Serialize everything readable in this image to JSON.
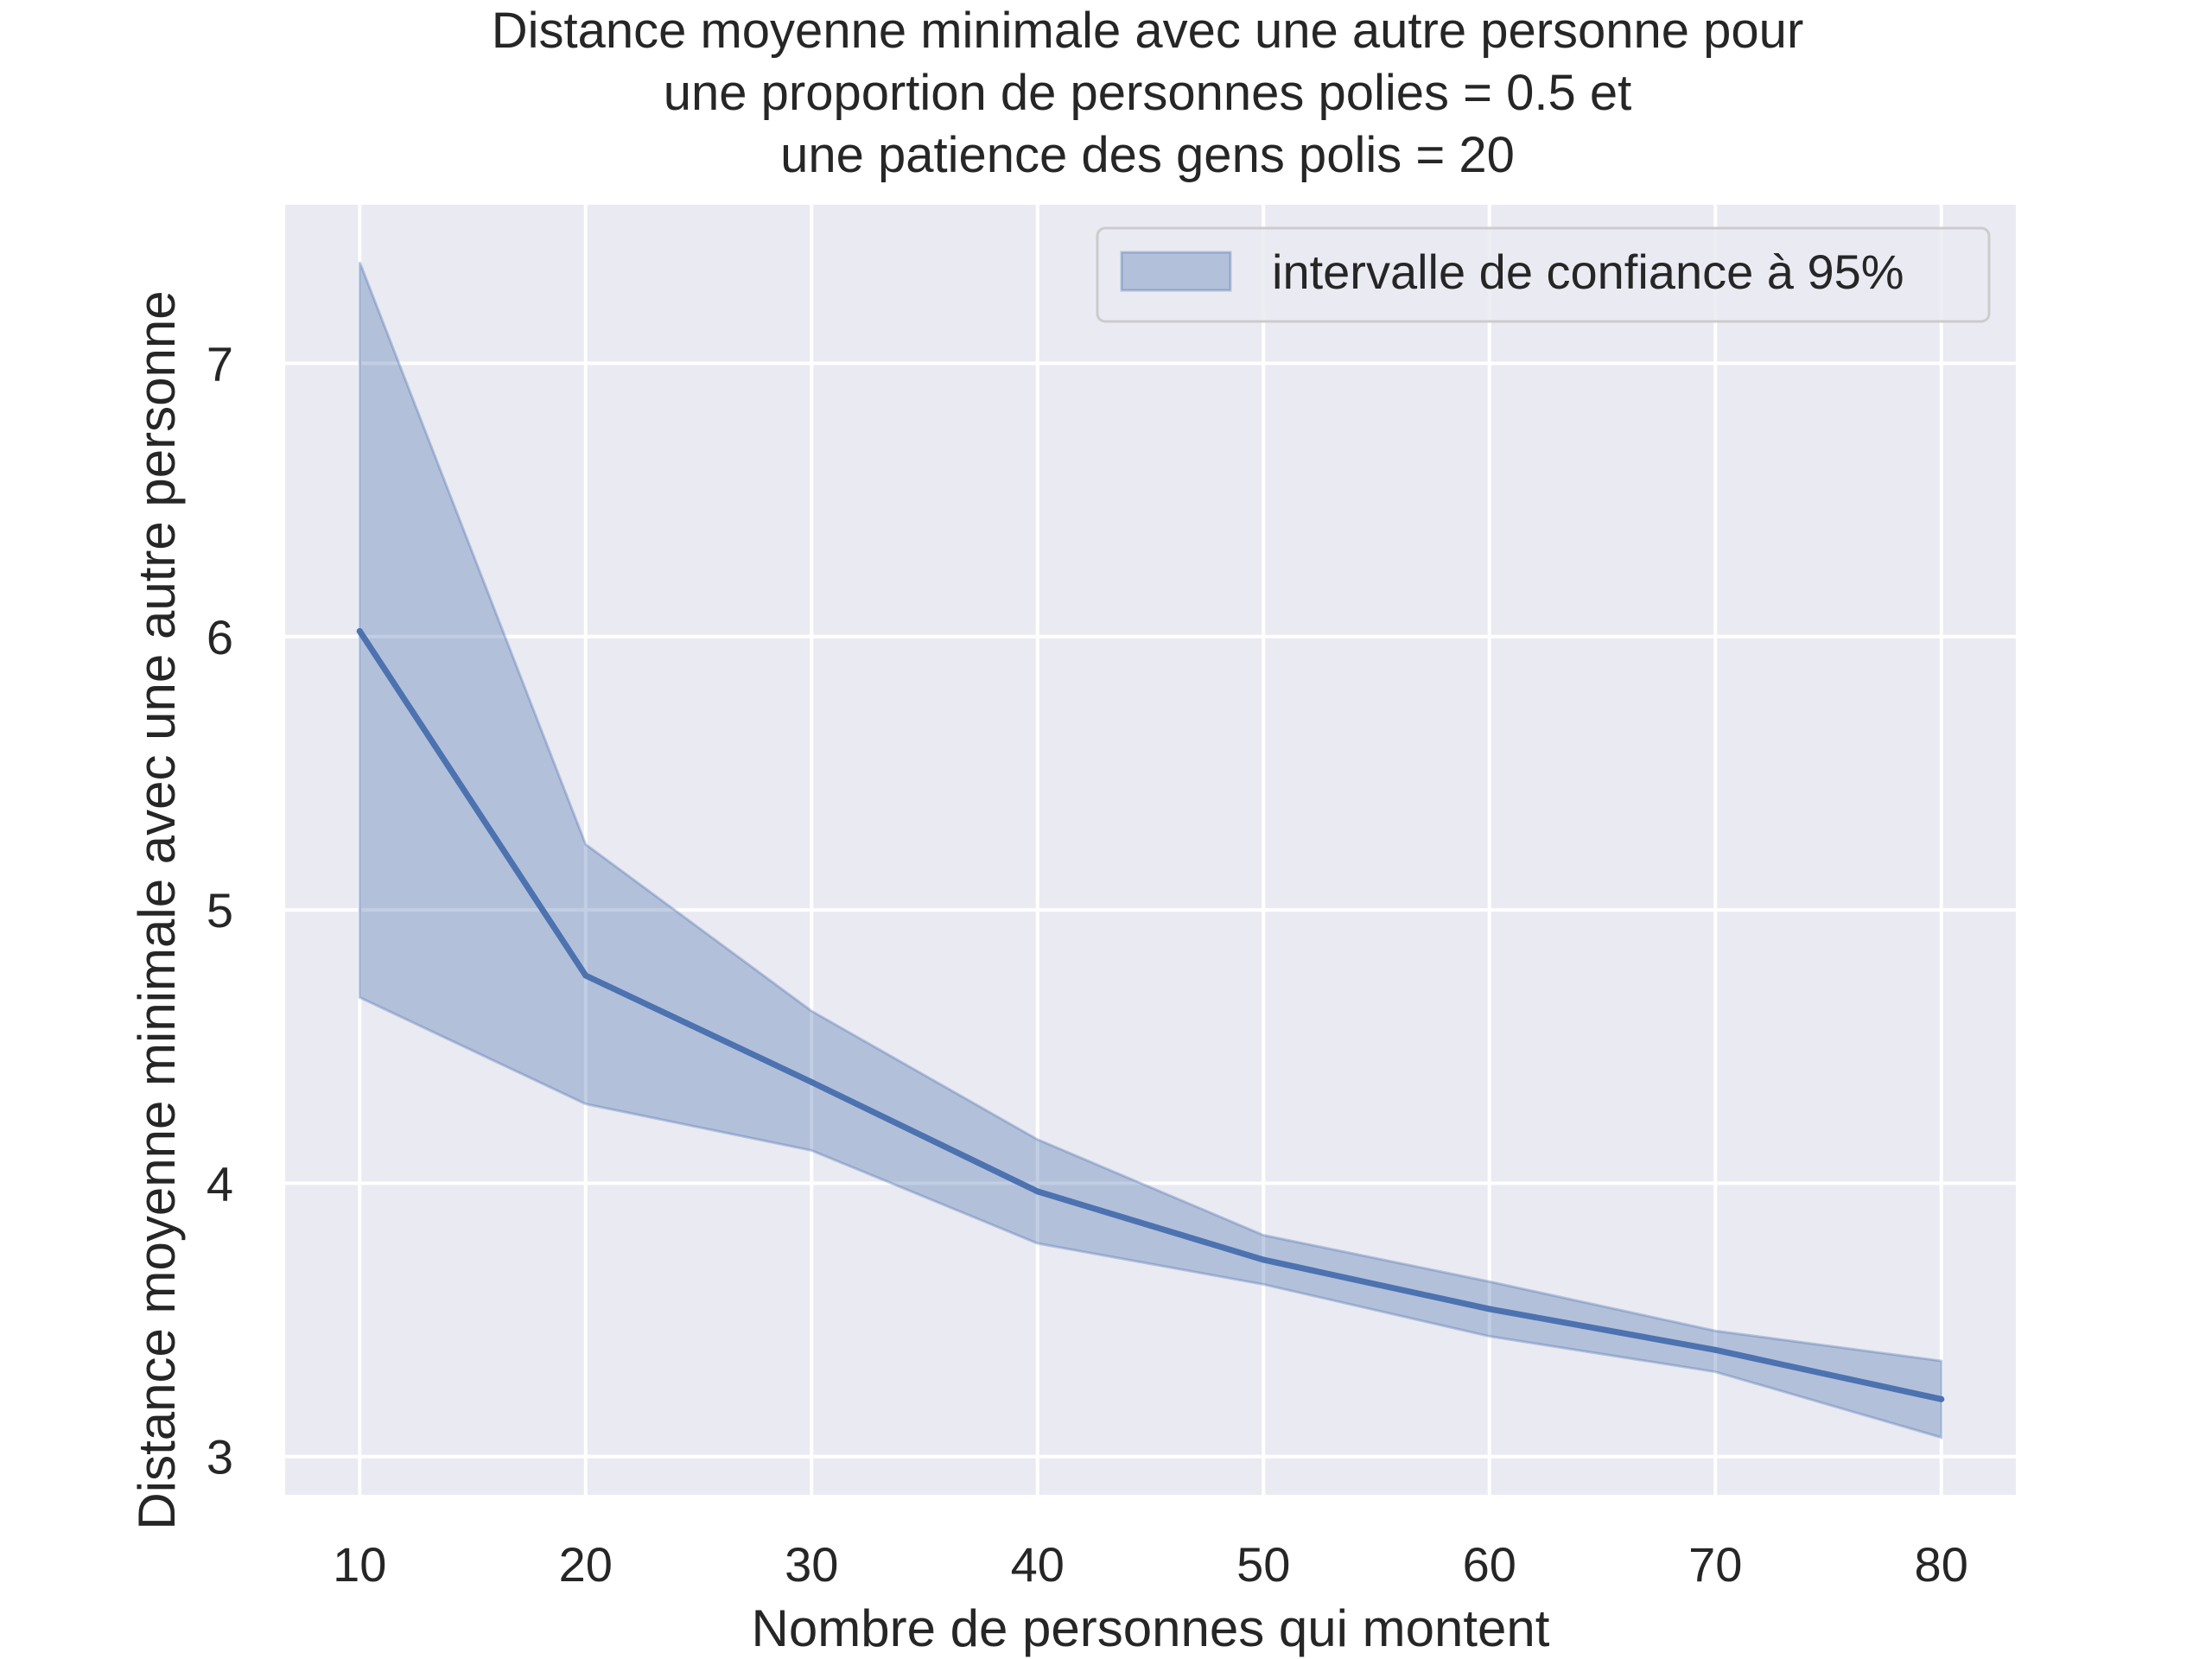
{
  "chart_data": {
    "type": "line",
    "title_lines": [
      "Distance moyenne minimale avec une autre personne pour",
      "une proportion de personnes polies = 0.5 et",
      "une patience des gens polis = 20"
    ],
    "xlabel": "Nombre de personnes qui montent",
    "ylabel": "Distance moyenne minimale avec une autre personne",
    "x": [
      10,
      20,
      30,
      40,
      50,
      60,
      70,
      80
    ],
    "series": [
      {
        "values": [
          6.02,
          4.76,
          4.37,
          3.97,
          3.72,
          3.54,
          3.39,
          3.21
        ],
        "color": "#4c72b0"
      }
    ],
    "ci_band": {
      "name": "intervalle de confiance à 95%",
      "lower": [
        4.68,
        4.29,
        4.12,
        3.78,
        3.63,
        3.44,
        3.31,
        3.07
      ],
      "upper": [
        7.37,
        5.24,
        4.63,
        4.16,
        3.81,
        3.64,
        3.46,
        3.35
      ],
      "color": "#4c72b0"
    },
    "xlim": [
      6.7,
      83.3
    ],
    "ylim": [
      2.86,
      7.58
    ],
    "xticks": [
      "10",
      "20",
      "30",
      "40",
      "50",
      "60",
      "70",
      "80"
    ],
    "yticks": [
      "3",
      "4",
      "5",
      "6",
      "7"
    ],
    "grid": true,
    "legend_position": "top-right",
    "background_color": "#eaeaf2",
    "grid_color": "#ffffff"
  }
}
